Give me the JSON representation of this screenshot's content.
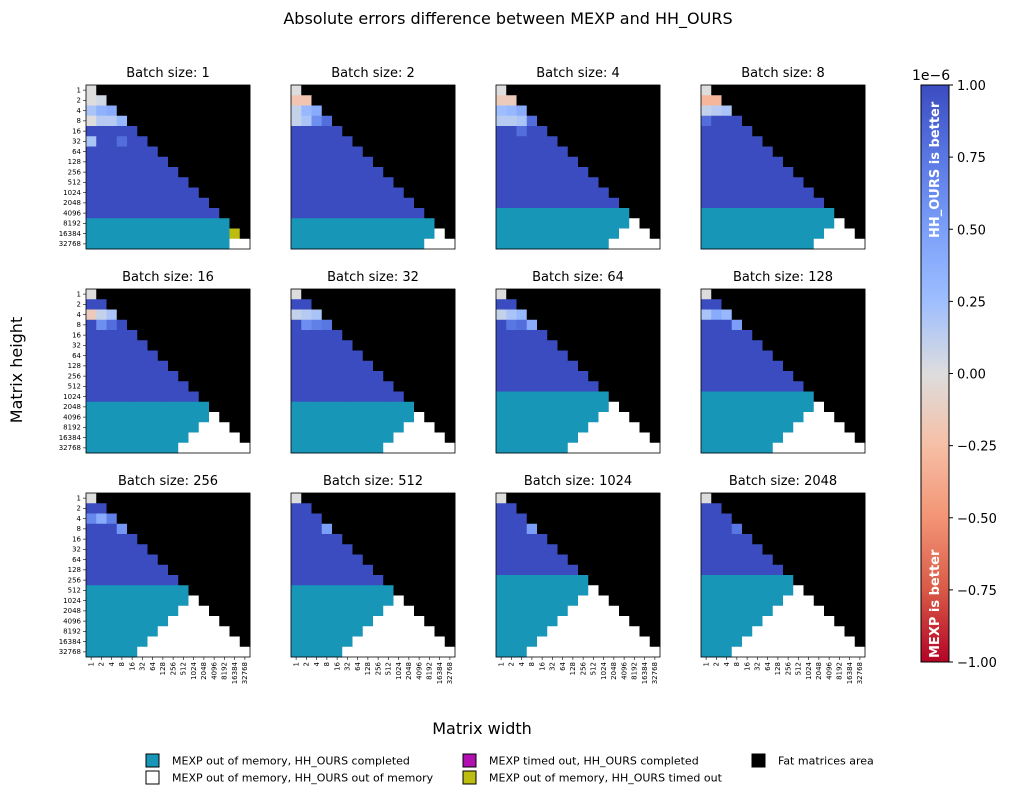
{
  "figure_title": "Absolute errors difference between MEXP and HH_OURS",
  "xlabel": "Matrix width",
  "ylabel": "Matrix height",
  "tick_labels": [
    "1",
    "2",
    "4",
    "8",
    "16",
    "32",
    "64",
    "128",
    "256",
    "512",
    "1024",
    "2048",
    "4096",
    "8192",
    "16384",
    "32768"
  ],
  "colorbar": {
    "exponent_label": "1e−6",
    "ticks": [
      "1.00",
      "0.75",
      "0.50",
      "0.25",
      "0.00",
      "−0.25",
      "−0.50",
      "−0.75",
      "−1.00"
    ],
    "top_text": "HH_OURS is better",
    "bottom_text": "MEXP is better",
    "vmin": -1.0,
    "vmax": 1.0
  },
  "colors": {
    "oom_completed": "#1896b8",
    "oom_oom": "#ffffff",
    "timeout_completed": "#b010b0",
    "oom_timeout": "#bdbd10",
    "fat_area": "#000000",
    "better_ours": "#3b4cc0",
    "better_mexp": "#b40426"
  },
  "legend": [
    {
      "key": "oom_completed",
      "label": "MEXP out of memory, HH_OURS completed"
    },
    {
      "key": "oom_oom",
      "label": "MEXP out of memory, HH_OURS out of memory"
    },
    {
      "key": "timeout_completed",
      "label": "MEXP timed out, HH_OURS completed"
    },
    {
      "key": "oom_timeout",
      "label": "MEXP out of memory, HH_OURS timed out"
    },
    {
      "key": "fat_area",
      "label": "Fat matrices area"
    }
  ],
  "chart_data": {
    "type": "heatmap",
    "cell_codes": {
      "D": "diverging value in units of 1e-6",
      "T": "MEXP out of memory, HH_OURS completed",
      "W": "MEXP out of memory, HH_OURS out of memory",
      "Y": "MEXP out of memory, HH_OURS timed out",
      "K": "Fat matrices area"
    },
    "panels": [
      {
        "title": "Batch size: 1",
        "first_oom_row": 13,
        "last_fit_row": 15,
        "white_start_offset": 15,
        "overrides": [
          [
            0,
            0,
            0.0
          ],
          [
            1,
            0,
            0.0
          ],
          [
            1,
            1,
            0.05
          ],
          [
            2,
            0,
            0.2
          ],
          [
            2,
            1,
            0.35
          ],
          [
            2,
            2,
            0.4
          ],
          [
            3,
            0,
            0.0
          ],
          [
            3,
            1,
            0.15
          ],
          [
            3,
            2,
            0.15
          ],
          [
            3,
            3,
            0.3
          ],
          [
            5,
            0,
            0.2
          ],
          [
            5,
            3,
            0.8
          ],
          [
            15,
            14,
            "W"
          ],
          [
            15,
            15,
            "W"
          ],
          [
            14,
            14,
            "Y"
          ],
          [
            14,
            15,
            "W"
          ]
        ]
      },
      {
        "title": "Batch size: 2",
        "first_oom_row": 13,
        "last_fit_row": 14,
        "overrides": [
          [
            0,
            0,
            0.0
          ],
          [
            1,
            0,
            -0.2
          ],
          [
            1,
            1,
            -0.2
          ],
          [
            2,
            0,
            0.1
          ],
          [
            2,
            1,
            0.3
          ],
          [
            2,
            2,
            0.4
          ],
          [
            3,
            0,
            0.1
          ],
          [
            3,
            1,
            0.2
          ],
          [
            3,
            2,
            0.6
          ],
          [
            3,
            3,
            0.8
          ]
        ]
      },
      {
        "title": "Batch size: 4",
        "first_oom_row": 12,
        "last_fit_row": 13,
        "overrides": [
          [
            0,
            0,
            0.0
          ],
          [
            1,
            0,
            -0.15
          ],
          [
            1,
            1,
            -0.15
          ],
          [
            2,
            0,
            0.25
          ],
          [
            2,
            1,
            0.3
          ],
          [
            2,
            2,
            0.4
          ],
          [
            3,
            0,
            0.15
          ],
          [
            3,
            1,
            0.15
          ],
          [
            3,
            2,
            0.2
          ],
          [
            3,
            3,
            0.8
          ],
          [
            4,
            2,
            0.8
          ]
        ]
      },
      {
        "title": "Batch size: 8",
        "first_oom_row": 12,
        "last_fit_row": 13,
        "overrides": [
          [
            0,
            0,
            0.0
          ],
          [
            1,
            0,
            -0.3
          ],
          [
            1,
            1,
            -0.3
          ],
          [
            2,
            0,
            0.1
          ],
          [
            2,
            1,
            0.15
          ],
          [
            2,
            2,
            0.2
          ],
          [
            2,
            3,
            0.25
          ],
          [
            3,
            0,
            0.8
          ]
        ]
      },
      {
        "title": "Batch size: 16",
        "first_oom_row": 11,
        "last_fit_row": 12,
        "overrides": [
          [
            0,
            0,
            0.0
          ],
          [
            2,
            0,
            -0.15
          ],
          [
            2,
            1,
            0.1
          ],
          [
            2,
            2,
            0.2
          ],
          [
            3,
            1,
            0.6
          ],
          [
            3,
            2,
            0.8
          ]
        ]
      },
      {
        "title": "Batch size: 32",
        "first_oom_row": 11,
        "last_fit_row": 12,
        "overrides": [
          [
            0,
            0,
            0.0
          ],
          [
            2,
            0,
            0.1
          ],
          [
            2,
            1,
            0.15
          ],
          [
            2,
            2,
            0.2
          ],
          [
            3,
            1,
            0.6
          ],
          [
            3,
            2,
            0.7
          ],
          [
            3,
            3,
            0.75
          ]
        ]
      },
      {
        "title": "Batch size: 64",
        "first_oom_row": 10,
        "last_fit_row": 11,
        "overrides": [
          [
            0,
            0,
            0.0
          ],
          [
            2,
            0,
            0.1
          ],
          [
            2,
            1,
            0.2
          ],
          [
            2,
            2,
            0.3
          ],
          [
            3,
            1,
            0.75
          ],
          [
            3,
            2,
            0.8
          ],
          [
            3,
            3,
            0.4
          ]
        ]
      },
      {
        "title": "Batch size: 128",
        "first_oom_row": 10,
        "last_fit_row": 11,
        "overrides": [
          [
            0,
            0,
            0.0
          ],
          [
            2,
            0,
            0.2
          ],
          [
            2,
            1,
            0.4
          ],
          [
            2,
            2,
            0.3
          ],
          [
            3,
            3,
            0.5
          ]
        ]
      },
      {
        "title": "Batch size: 256",
        "first_oom_row": 9,
        "last_fit_row": 10,
        "overrides": [
          [
            0,
            0,
            0.0
          ],
          [
            2,
            0,
            0.65
          ],
          [
            2,
            1,
            0.4
          ],
          [
            2,
            2,
            0.7
          ],
          [
            3,
            3,
            0.55
          ]
        ]
      },
      {
        "title": "Batch size: 512",
        "first_oom_row": 9,
        "last_fit_row": 10,
        "overrides": [
          [
            0,
            0,
            0.0
          ],
          [
            3,
            3,
            0.5
          ]
        ]
      },
      {
        "title": "Batch size: 1024",
        "first_oom_row": 8,
        "last_fit_row": 9,
        "overrides": [
          [
            0,
            0,
            0.0
          ],
          [
            3,
            3,
            0.5
          ]
        ]
      },
      {
        "title": "Batch size: 2048",
        "first_oom_row": 8,
        "last_fit_row": 9,
        "overrides": [
          [
            0,
            0,
            0.0
          ],
          [
            3,
            3,
            0.75
          ]
        ]
      }
    ]
  }
}
